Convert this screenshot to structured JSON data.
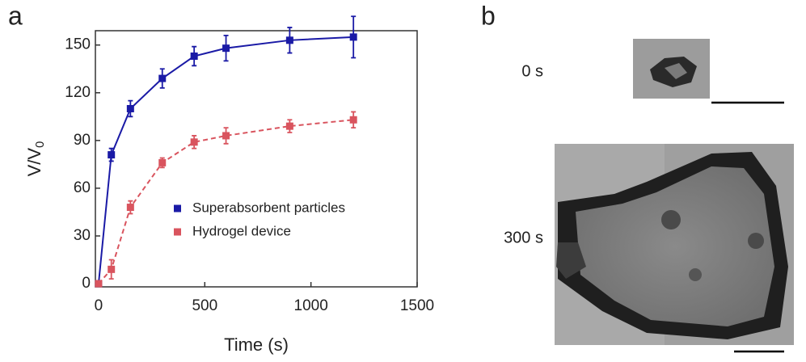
{
  "panel_a": {
    "label": "a"
  },
  "chart_data": {
    "type": "line",
    "x_label": "Time (s)",
    "y_label": {
      "main": "V/V",
      "sub": "0"
    },
    "xlim": [
      -15,
      1500
    ],
    "xticks": [
      0,
      500,
      1000,
      1500
    ],
    "ylim": [
      -2,
      159
    ],
    "yticks": [
      0,
      30,
      60,
      90,
      120,
      150
    ],
    "x": [
      0,
      60,
      150,
      300,
      450,
      600,
      900,
      1200
    ],
    "series": [
      {
        "name": "Superabsorbent particles",
        "color": "#1a1aa6",
        "style": "solid",
        "values": [
          0,
          81,
          110,
          129,
          143,
          148,
          153,
          155
        ],
        "errors": [
          1,
          4,
          5,
          6,
          6,
          8,
          8,
          13
        ]
      },
      {
        "name": "Hydrogel device",
        "color": "#d9545e",
        "style": "dashed",
        "values": [
          0,
          9,
          48,
          76,
          89,
          93,
          99,
          103
        ],
        "errors": [
          1,
          6,
          4,
          3,
          4,
          5,
          4,
          5
        ]
      }
    ],
    "legend": "lower-right"
  },
  "panel_b": {
    "label": "b",
    "images": [
      {
        "time": "0 s"
      },
      {
        "time": "300 s"
      }
    ]
  }
}
